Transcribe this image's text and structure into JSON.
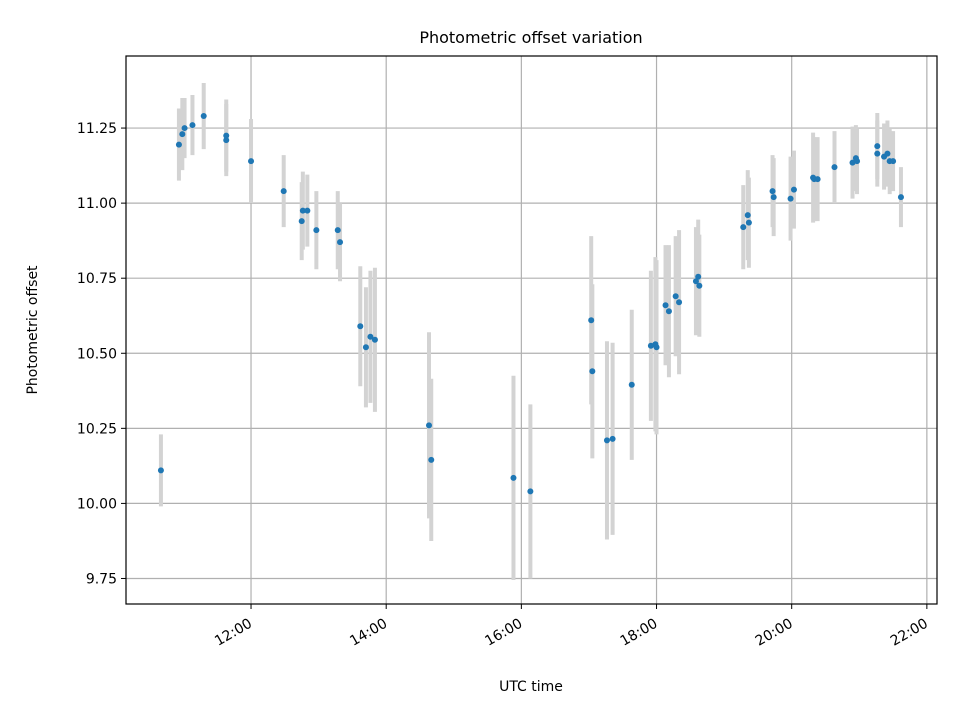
{
  "chart_data": {
    "type": "scatter",
    "title": "Photometric offset variation",
    "xlabel": "UTC time",
    "ylabel": "Photometric offset",
    "x_ticks": [
      "12:00",
      "14:00",
      "16:00",
      "18:00",
      "20:00",
      "22:00"
    ],
    "y_ticks": [
      "9.75",
      "10.00",
      "10.25",
      "10.50",
      "10.75",
      "11.00",
      "11.25"
    ],
    "xlim": [
      "10:09",
      "22:09"
    ],
    "ylim": [
      9.665,
      11.49
    ],
    "grid": true,
    "errorbars": true,
    "colors": {
      "points": "#1f77b4",
      "errorbars": "#d3d3d3",
      "grid": "#b0b0b0"
    },
    "x": [
      "10:40",
      "10:56",
      "10:59",
      "11:01",
      "11:08",
      "11:18",
      "11:38",
      "11:38",
      "12:00",
      "12:29",
      "12:45",
      "12:46",
      "12:50",
      "12:58",
      "13:17",
      "13:19",
      "13:37",
      "13:42",
      "13:46",
      "13:50",
      "14:38",
      "14:40",
      "15:53",
      "16:08",
      "17:02",
      "17:03",
      "17:16",
      "17:21",
      "17:38",
      "17:55",
      "17:59",
      "18:00",
      "18:08",
      "18:11",
      "18:17",
      "18:20",
      "18:35",
      "18:37",
      "18:38",
      "19:17",
      "19:21",
      "19:22",
      "19:43",
      "19:44",
      "19:59",
      "20:02",
      "20:19",
      "20:20",
      "20:23",
      "20:38",
      "20:54",
      "20:57",
      "20:58",
      "21:16",
      "21:16",
      "21:22",
      "21:25",
      "21:27",
      "21:30",
      "21:37"
    ],
    "y": [
      10.11,
      11.195,
      11.23,
      11.25,
      11.26,
      11.29,
      11.21,
      11.225,
      11.14,
      11.04,
      10.94,
      10.975,
      10.975,
      10.91,
      10.91,
      10.87,
      10.59,
      10.52,
      10.555,
      10.545,
      10.26,
      10.145,
      10.085,
      10.04,
      10.61,
      10.44,
      10.21,
      10.215,
      10.395,
      10.525,
      10.53,
      10.52,
      10.66,
      10.64,
      10.69,
      10.67,
      10.74,
      10.755,
      10.725,
      10.92,
      10.96,
      10.935,
      11.04,
      11.02,
      11.015,
      11.045,
      11.085,
      11.08,
      11.08,
      11.12,
      11.135,
      11.15,
      11.14,
      11.19,
      11.165,
      11.155,
      11.165,
      11.14,
      11.14,
      11.02
    ],
    "yerr": [
      0.12,
      0.12,
      0.12,
      0.1,
      0.1,
      0.11,
      0.12,
      0.12,
      0.14,
      0.12,
      0.13,
      0.13,
      0.12,
      0.13,
      0.13,
      0.13,
      0.2,
      0.2,
      0.22,
      0.24,
      0.31,
      0.27,
      0.34,
      0.29,
      0.28,
      0.29,
      0.33,
      0.32,
      0.25,
      0.25,
      0.29,
      0.29,
      0.2,
      0.22,
      0.2,
      0.24,
      0.18,
      0.19,
      0.17,
      0.14,
      0.15,
      0.15,
      0.12,
      0.13,
      0.14,
      0.13,
      0.15,
      0.14,
      0.14,
      0.12,
      0.12,
      0.11,
      0.11,
      0.11,
      0.11,
      0.11,
      0.11,
      0.11,
      0.1,
      0.1
    ]
  }
}
